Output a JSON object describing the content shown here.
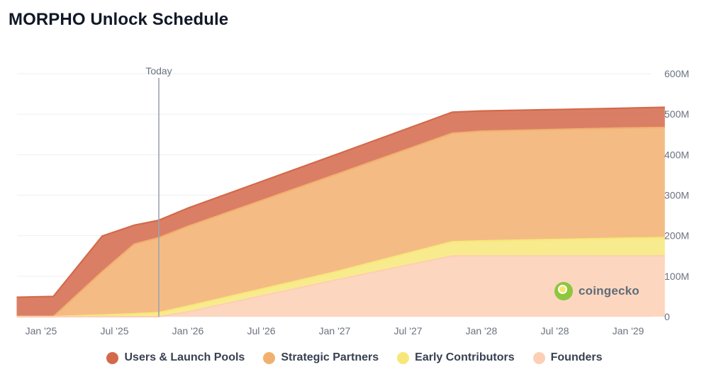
{
  "page": {
    "title": "MORPHO Unlock Schedule",
    "watermark": "coingecko"
  },
  "chart_data": {
    "type": "area",
    "stacked": true,
    "title": "MORPHO Unlock Schedule",
    "xlabel": "",
    "ylabel": "",
    "x_ticks": [
      "Jan '25",
      "Jul '25",
      "Jan '26",
      "Jul '26",
      "Jan '27",
      "Jul '27",
      "Jan '28",
      "Jul '28",
      "Jan '29"
    ],
    "y_ticks": [
      "0",
      "100M",
      "200M",
      "300M",
      "400M",
      "500M",
      "600M"
    ],
    "ylim": [
      0,
      600
    ],
    "y_unit": "M",
    "y_axis_side": "right",
    "grid": true,
    "legend_position": "bottom",
    "marker": {
      "label": "Today",
      "date": "2025-10-20"
    },
    "x": [
      "2024-11-01",
      "2025-02-01",
      "2025-06-01",
      "2025-08-20",
      "2025-10-20",
      "2026-01-01",
      "2027-01-01",
      "2027-10-20",
      "2028-01-01",
      "2028-08-01",
      "2029-01-01",
      "2029-04-01"
    ],
    "series": [
      {
        "name": "Founders",
        "color": "#fdcfb4",
        "values": [
          0,
          0,
          0,
          0,
          0,
          12,
          90,
          150,
          150,
          150,
          150,
          150
        ]
      },
      {
        "name": "Early Contributors",
        "color": "#f7e779",
        "values": [
          0,
          0,
          4,
          7,
          10,
          14,
          20,
          35,
          37,
          41,
          44,
          45
        ]
      },
      {
        "name": "Strategic Partners",
        "color": "#f2b06e",
        "values": [
          0,
          0,
          107,
          172,
          185,
          197,
          240,
          268,
          271,
          272,
          272,
          272
        ]
      },
      {
        "name": "Users & Launch Pools",
        "color": "#d4694a",
        "values": [
          48,
          50,
          88,
          47,
          43,
          45,
          49,
          52,
          50,
          49,
          49,
          50
        ]
      }
    ]
  }
}
